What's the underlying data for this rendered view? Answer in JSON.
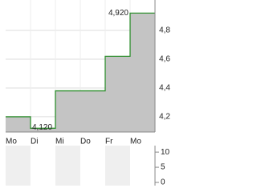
{
  "chart_data": [
    {
      "type": "step-area",
      "categories": [
        "Mo",
        "Di",
        "Mi",
        "Do",
        "Fr",
        "Mo"
      ],
      "series": [
        {
          "color": "#2f8f2f",
          "fill": "#c4c4c4",
          "values": [
            4.2,
            4.12,
            4.38,
            4.38,
            4.62,
            4.92
          ],
          "value_labels": [
            null,
            "4,120",
            null,
            null,
            null,
            "4,920"
          ]
        }
      ],
      "ylim": [
        4.094,
        5.011
      ],
      "yticks": [
        {
          "value": 4.2,
          "label": "4,2"
        },
        {
          "value": 4.4,
          "label": "4,4"
        },
        {
          "value": 4.6,
          "label": "4,6"
        },
        {
          "value": 4.8,
          "label": "4,8"
        }
      ],
      "grid": true
    },
    {
      "type": "volume",
      "ylim": [
        -1.05,
        13.2
      ],
      "yticks": [
        0,
        5,
        10
      ]
    }
  ]
}
